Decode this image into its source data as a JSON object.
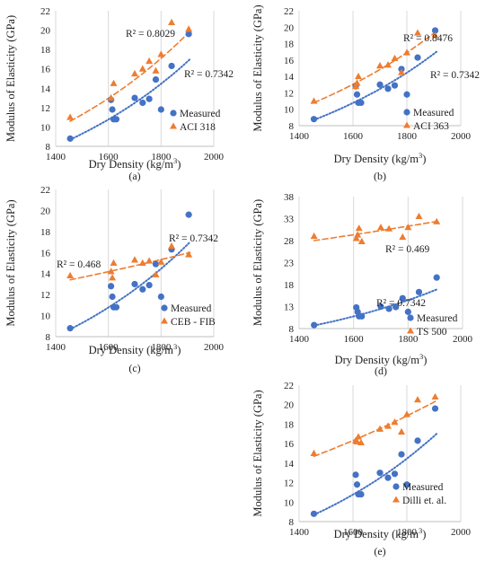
{
  "colors": {
    "measured": "#4472C4",
    "predicted": "#ED7D31",
    "grid": "#d9d9d9",
    "axis": "#bfbfbf"
  },
  "chart_data": [
    {
      "panel_label": "(a)",
      "type": "scatter",
      "xlabel": "Dry Density (kg/m³)",
      "ylabel": "Modulus of Elasticity (GPa)",
      "xlim": [
        1400,
        2000
      ],
      "ylim": [
        8,
        22
      ],
      "xticks": [
        1400,
        1600,
        1800,
        2000
      ],
      "yticks": [
        8,
        10,
        12,
        14,
        16,
        18,
        20,
        22
      ],
      "grid": "vertical",
      "legend_position": "right",
      "series": [
        {
          "name": "Measured",
          "role": "measured",
          "x": [
            1455,
            1610,
            1615,
            1620,
            1630,
            1700,
            1730,
            1755,
            1780,
            1800,
            1840,
            1905
          ],
          "y": [
            8.8,
            12.8,
            11.8,
            10.8,
            10.8,
            13.0,
            12.5,
            12.9,
            14.9,
            11.8,
            16.3,
            19.6
          ],
          "trend": "exponential",
          "trend_ends": [
            [
              1455,
              8.7
            ],
            [
              1910,
              17.0
            ]
          ],
          "r2_label": "R² = 0.7342"
        },
        {
          "name": "ACI 318",
          "role": "predicted",
          "x": [
            1455,
            1610,
            1620,
            1700,
            1730,
            1755,
            1780,
            1800,
            1840,
            1905
          ],
          "y": [
            11.0,
            13.0,
            14.5,
            15.5,
            16.0,
            16.8,
            15.8,
            17.5,
            20.8,
            20.1
          ],
          "trend": "power",
          "trend_ends": [
            [
              1455,
              10.6
            ],
            [
              1910,
              19.9
            ]
          ],
          "r2_label": "R² = 0.8029"
        }
      ]
    },
    {
      "panel_label": "(b)",
      "type": "scatter",
      "xlabel": "Dry Density (kg/m³)",
      "ylabel": "Modulus of Elasticity (GPa)",
      "xlim": [
        1400,
        2000
      ],
      "ylim": [
        8,
        22
      ],
      "xticks": [
        1400,
        1600,
        1800,
        2000
      ],
      "yticks": [
        8,
        10,
        12,
        14,
        16,
        18,
        20,
        22
      ],
      "grid": "vertical",
      "legend_position": "bottom-right",
      "series": [
        {
          "name": "Measured",
          "role": "measured",
          "x": [
            1455,
            1610,
            1615,
            1620,
            1630,
            1700,
            1730,
            1755,
            1780,
            1800,
            1840,
            1905
          ],
          "y": [
            8.8,
            12.8,
            11.8,
            10.8,
            10.8,
            13.0,
            12.5,
            12.9,
            14.9,
            11.8,
            16.3,
            19.6
          ],
          "trend": "exponential",
          "trend_ends": [
            [
              1455,
              8.7
            ],
            [
              1910,
              17.0
            ]
          ],
          "r2_label": "R² = 0.7342"
        },
        {
          "name": "ACI 363",
          "role": "predicted",
          "x": [
            1455,
            1610,
            1615,
            1620,
            1700,
            1730,
            1755,
            1780,
            1800,
            1840,
            1905
          ],
          "y": [
            11.0,
            12.8,
            13.2,
            14.0,
            15.3,
            15.4,
            16.2,
            14.5,
            16.9,
            19.3,
            19.0
          ],
          "trend": "power",
          "trend_ends": [
            [
              1455,
              10.8
            ],
            [
              1910,
              19.5
            ]
          ],
          "r2_label": "R² = 0.8476"
        }
      ]
    },
    {
      "panel_label": "(c)",
      "type": "scatter",
      "xlabel": "Dry Density (kg/m³)",
      "ylabel": "Modulus of Elasticity (GPa)",
      "xlim": [
        1400,
        2000
      ],
      "ylim": [
        8,
        22
      ],
      "xticks": [
        1400,
        1600,
        1800,
        2000
      ],
      "yticks": [
        8,
        10,
        12,
        14,
        16,
        18,
        20,
        22
      ],
      "grid": "vertical",
      "legend_position": "bottom-right",
      "series": [
        {
          "name": "Measured",
          "role": "measured",
          "x": [
            1455,
            1610,
            1615,
            1620,
            1630,
            1700,
            1730,
            1755,
            1780,
            1800,
            1840,
            1905
          ],
          "y": [
            8.8,
            12.8,
            11.8,
            10.8,
            10.8,
            13.0,
            12.5,
            12.9,
            14.9,
            11.8,
            16.3,
            19.6
          ],
          "trend": "exponential",
          "trend_ends": [
            [
              1455,
              8.7
            ],
            [
              1910,
              17.0
            ]
          ],
          "r2_label": "R² = 0.7342"
        },
        {
          "name": "CEB - FIB",
          "role": "predicted",
          "x": [
            1455,
            1610,
            1615,
            1620,
            1700,
            1730,
            1755,
            1780,
            1800,
            1840,
            1905
          ],
          "y": [
            13.8,
            14.2,
            13.6,
            15.0,
            15.3,
            15.0,
            15.2,
            13.9,
            15.1,
            16.6,
            15.8
          ],
          "trend": "power",
          "trend_ends": [
            [
              1455,
              13.4
            ],
            [
              1910,
              16.0
            ]
          ],
          "r2_label": "R² = 0.468"
        }
      ]
    },
    {
      "panel_label": "(d)",
      "type": "scatter",
      "xlabel": "Dry Density (kg/m³)",
      "ylabel": "Modulus of Elasticity (GPa)",
      "xlim": [
        1400,
        2000
      ],
      "ylim": [
        8,
        38
      ],
      "xticks": [
        1400,
        1600,
        1800,
        2000
      ],
      "yticks": [
        8,
        13,
        18,
        23,
        28,
        33,
        38
      ],
      "grid": "vertical",
      "legend_position": "bottom-right",
      "series": [
        {
          "name": "Measured",
          "role": "measured",
          "x": [
            1455,
            1610,
            1615,
            1620,
            1630,
            1700,
            1730,
            1755,
            1780,
            1800,
            1840,
            1905
          ],
          "y": [
            8.8,
            12.8,
            11.8,
            10.8,
            10.8,
            13.0,
            12.5,
            12.9,
            14.9,
            11.8,
            16.3,
            19.6
          ],
          "trend": "exponential",
          "trend_ends": [
            [
              1455,
              8.7
            ],
            [
              1910,
              17.0
            ]
          ],
          "r2_label": "R² = 0.7342"
        },
        {
          "name": "TS 500",
          "role": "predicted",
          "x": [
            1455,
            1610,
            1615,
            1620,
            1630,
            1700,
            1730,
            1780,
            1800,
            1840,
            1905
          ],
          "y": [
            29.0,
            28.5,
            29.3,
            30.8,
            27.8,
            31.0,
            30.7,
            28.8,
            31.0,
            33.5,
            32.3
          ],
          "trend": "power",
          "trend_ends": [
            [
              1455,
              28.0
            ],
            [
              1910,
              32.4
            ]
          ],
          "r2_label": "R² = 0.469"
        }
      ]
    },
    {
      "panel_label": "(e)",
      "type": "scatter",
      "xlabel": "Dry Density (kg/m³)",
      "ylabel": "Modulus of Elasticity (GPa)",
      "xlim": [
        1400,
        2000
      ],
      "ylim": [
        8,
        22
      ],
      "xticks": [
        1400,
        1600,
        1800,
        2000
      ],
      "yticks": [
        8,
        10,
        12,
        14,
        16,
        18,
        20,
        22
      ],
      "grid": "vertical",
      "legend_position": "bottom-right",
      "series": [
        {
          "name": "Measured",
          "role": "measured",
          "x": [
            1455,
            1610,
            1615,
            1620,
            1630,
            1700,
            1730,
            1755,
            1780,
            1800,
            1840,
            1905
          ],
          "y": [
            8.8,
            12.8,
            11.8,
            10.8,
            10.8,
            13.0,
            12.5,
            12.9,
            14.9,
            11.8,
            16.3,
            19.6
          ],
          "trend": "exponential",
          "trend_ends": [
            [
              1455,
              8.7
            ],
            [
              1910,
              17.0
            ]
          ],
          "r2_label": ""
        },
        {
          "name": "Dilli et. al.",
          "role": "predicted",
          "x": [
            1455,
            1610,
            1615,
            1620,
            1630,
            1700,
            1730,
            1755,
            1780,
            1800,
            1840,
            1905
          ],
          "y": [
            15.0,
            16.3,
            16.2,
            16.7,
            16.1,
            17.5,
            17.8,
            18.2,
            17.2,
            19.0,
            20.5,
            20.8
          ],
          "trend": "power",
          "trend_ends": [
            [
              1455,
              14.7
            ],
            [
              1910,
              20.4
            ]
          ],
          "r2_label": ""
        }
      ]
    }
  ]
}
